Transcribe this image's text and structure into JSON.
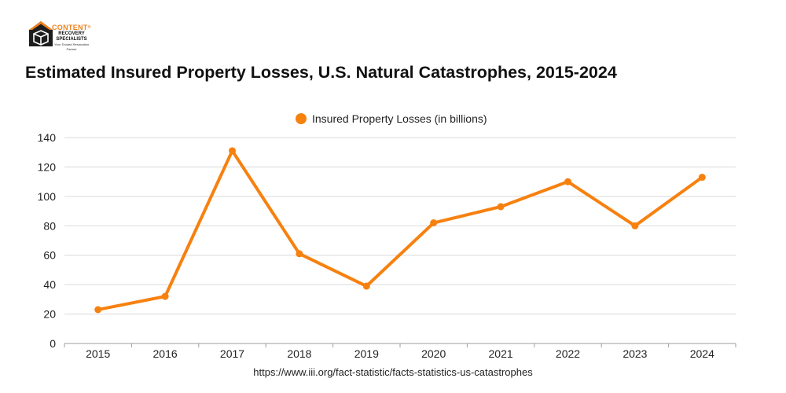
{
  "brand": {
    "name_line1": "CONTENT",
    "registered_mark": "®",
    "name_line2": "RECOVERY",
    "name_line3": "SPECIALISTS",
    "tagline": "Your Trusted Restoration Partner",
    "accent_color": "#f0821e"
  },
  "chart_data": {
    "type": "line",
    "title": "Estimated Insured Property Losses, U.S. Natural Catastrophes, 2015-2024",
    "x": [
      "2015",
      "2016",
      "2017",
      "2018",
      "2019",
      "2020",
      "2021",
      "2022",
      "2023",
      "2024"
    ],
    "series": [
      {
        "name": "Insured Property Losses (in billions)",
        "values": [
          23,
          32,
          131,
          61,
          39,
          82,
          93,
          110,
          80,
          113
        ],
        "color": "#f7810f"
      }
    ],
    "ylim": [
      0,
      140
    ],
    "yticks": [
      0,
      20,
      40,
      60,
      80,
      100,
      120,
      140
    ],
    "grid": true,
    "legend": "top-center",
    "xlabel": "",
    "ylabel": ""
  },
  "source": "https://www.iii.org/fact-statistic/facts-statistics-us-catastrophes"
}
